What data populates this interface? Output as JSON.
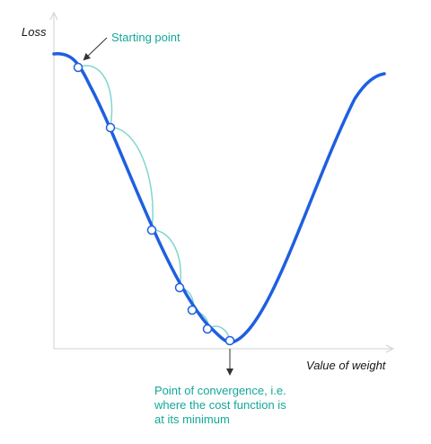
{
  "axes": {
    "y_label": "Loss",
    "x_label": "Value of weight"
  },
  "annotations": {
    "start": "Starting point",
    "convergence_lines": [
      "Point of convergence, i.e.",
      "where the cost function is",
      "at its minimum"
    ]
  },
  "gradient_steps": {
    "count": 7
  },
  "colors": {
    "curve": "#1f5fe0",
    "step_arcs": "#7fd6cc",
    "annotation_text": "#12a89a",
    "axis": "#d0d0d0",
    "arrow": "#333333",
    "point_fill": "#ffffff"
  }
}
